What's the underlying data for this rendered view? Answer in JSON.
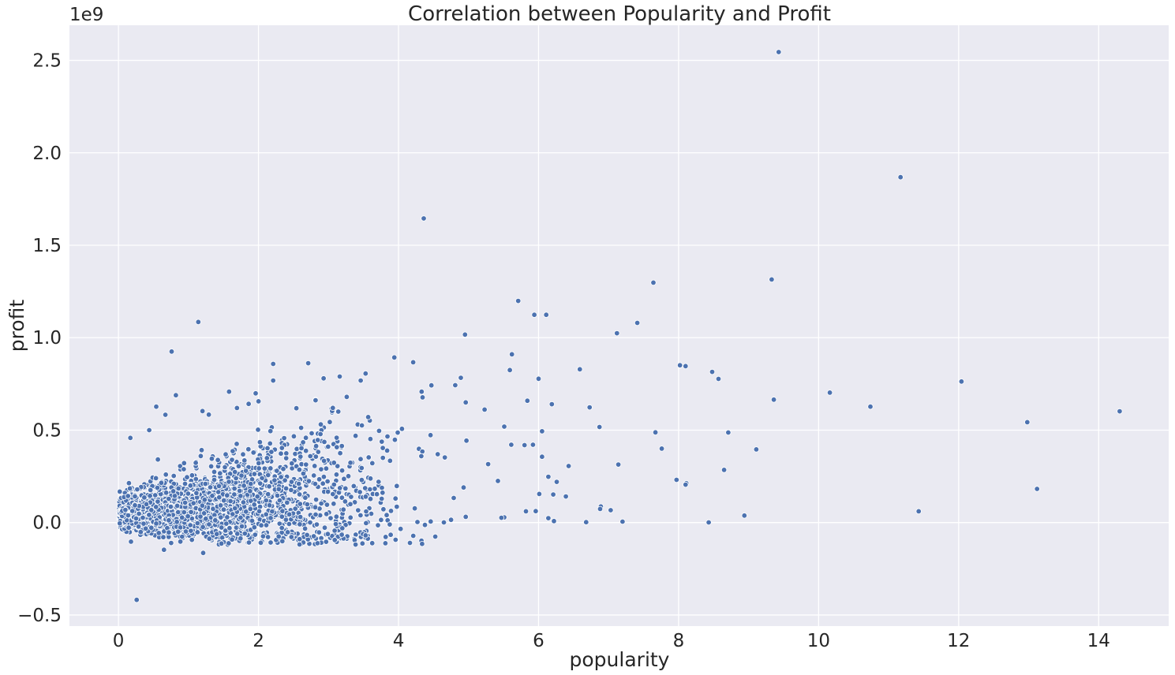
{
  "chart_data": {
    "type": "scatter",
    "title": "Correlation between Popularity and Profit",
    "xlabel": "popularity",
    "ylabel": "profit",
    "y_offset_label": "1e9",
    "xlim": [
      -0.7,
      15.0
    ],
    "ylim": [
      -0.56,
      2.69
    ],
    "x_ticks": [
      0,
      2,
      4,
      6,
      8,
      10,
      12,
      14
    ],
    "x_tick_labels": [
      "0",
      "2",
      "4",
      "6",
      "8",
      "10",
      "12",
      "14"
    ],
    "y_ticks": [
      -0.5,
      0.0,
      0.5,
      1.0,
      1.5,
      2.0,
      2.5
    ],
    "y_tick_labels": [
      "−0.5",
      "0.0",
      "0.5",
      "1.0",
      "1.5",
      "2.0",
      "2.5"
    ],
    "grid": true,
    "background": "#eaeaf2",
    "point_color": "#4c72b0",
    "outliers": [
      [
        9.43,
        2.545
      ],
      [
        11.17,
        1.868
      ],
      [
        4.36,
        1.645
      ],
      [
        9.33,
        1.315
      ],
      [
        7.64,
        1.298
      ],
      [
        5.71,
        1.199
      ],
      [
        5.94,
        1.124
      ],
      [
        6.11,
        1.124
      ],
      [
        1.14,
        1.085
      ],
      [
        7.41,
        1.08
      ],
      [
        7.12,
        1.024
      ],
      [
        4.95,
        1.017
      ],
      [
        0.76,
        0.925
      ],
      [
        5.62,
        0.91
      ],
      [
        3.94,
        0.893
      ],
      [
        2.71,
        0.862
      ],
      [
        2.21,
        0.858
      ],
      [
        4.21,
        0.867
      ],
      [
        8.02,
        0.851
      ],
      [
        8.1,
        0.846
      ],
      [
        6.59,
        0.829
      ],
      [
        5.59,
        0.825
      ],
      [
        8.48,
        0.815
      ],
      [
        3.53,
        0.806
      ],
      [
        3.16,
        0.79
      ],
      [
        4.89,
        0.783
      ],
      [
        6.0,
        0.778
      ],
      [
        8.57,
        0.777
      ],
      [
        2.93,
        0.78
      ],
      [
        2.21,
        0.768
      ],
      [
        3.46,
        0.768
      ],
      [
        12.04,
        0.763
      ],
      [
        4.47,
        0.742
      ],
      [
        4.81,
        0.743
      ],
      [
        10.16,
        0.703
      ],
      [
        1.58,
        0.708
      ],
      [
        4.33,
        0.708
      ],
      [
        0.82,
        0.689
      ],
      [
        3.26,
        0.68
      ],
      [
        4.96,
        0.65
      ],
      [
        9.36,
        0.665
      ],
      [
        5.84,
        0.659
      ],
      [
        2.0,
        0.656
      ],
      [
        10.74,
        0.627
      ],
      [
        1.86,
        0.642
      ],
      [
        0.54,
        0.627
      ],
      [
        6.73,
        0.623
      ],
      [
        6.19,
        0.64
      ],
      [
        14.3,
        0.602
      ],
      [
        5.23,
        0.611
      ],
      [
        1.2,
        0.603
      ],
      [
        3.14,
        0.6
      ],
      [
        0.67,
        0.583
      ],
      [
        1.29,
        0.584
      ],
      [
        12.98,
        0.543
      ],
      [
        6.87,
        0.517
      ],
      [
        4.05,
        0.507
      ],
      [
        5.51,
        0.519
      ],
      [
        0.44,
        0.5
      ],
      [
        7.67,
        0.488
      ],
      [
        8.71,
        0.487
      ],
      [
        6.05,
        0.494
      ],
      [
        0.17,
        0.458
      ],
      [
        4.97,
        0.443
      ],
      [
        7.76,
        0.4
      ],
      [
        9.11,
        0.396
      ],
      [
        5.61,
        0.421
      ],
      [
        5.8,
        0.419
      ],
      [
        5.92,
        0.421
      ],
      [
        6.05,
        0.356
      ],
      [
        6.43,
        0.306
      ],
      [
        7.14,
        0.314
      ],
      [
        8.65,
        0.285
      ],
      [
        4.56,
        0.37
      ],
      [
        7.97,
        0.231
      ],
      [
        8.11,
        0.213
      ],
      [
        8.1,
        0.205
      ],
      [
        6.14,
        0.248
      ],
      [
        6.26,
        0.22
      ],
      [
        13.12,
        0.182
      ],
      [
        6.21,
        0.152
      ],
      [
        6.39,
        0.141
      ],
      [
        5.28,
        0.316
      ],
      [
        5.42,
        0.225
      ],
      [
        6.01,
        0.155
      ],
      [
        5.82,
        0.061
      ],
      [
        5.96,
        0.062
      ],
      [
        6.89,
        0.087
      ],
      [
        6.88,
        0.074
      ],
      [
        7.03,
        0.067
      ],
      [
        11.43,
        0.061
      ],
      [
        8.94,
        0.038
      ],
      [
        5.51,
        0.028
      ],
      [
        5.47,
        0.026
      ],
      [
        6.14,
        0.024
      ],
      [
        6.22,
        0.008
      ],
      [
        6.68,
        0.002
      ],
      [
        7.2,
        0.005
      ],
      [
        8.43,
        0.001
      ],
      [
        4.96,
        0.031
      ],
      [
        4.75,
        0.015
      ],
      [
        4.46,
        0.006
      ],
      [
        4.27,
        0.003
      ],
      [
        0.26,
        -0.418
      ],
      [
        1.21,
        -0.164
      ],
      [
        0.65,
        -0.147
      ],
      [
        4.03,
        -0.034
      ]
    ],
    "cluster_note": "",
    "clusters": [
      {
        "x_center": 0.55,
        "x_spread": 0.45,
        "y_center": 0.04,
        "y_spread": 0.07,
        "count": 1400
      },
      {
        "x_center": 1.3,
        "x_spread": 0.55,
        "y_center": 0.1,
        "y_spread": 0.12,
        "count": 900
      },
      {
        "x_center": 2.3,
        "x_spread": 0.6,
        "y_center": 0.15,
        "y_spread": 0.16,
        "count": 420
      },
      {
        "x_center": 3.3,
        "x_spread": 0.6,
        "y_center": 0.22,
        "y_spread": 0.2,
        "count": 180
      }
    ]
  }
}
